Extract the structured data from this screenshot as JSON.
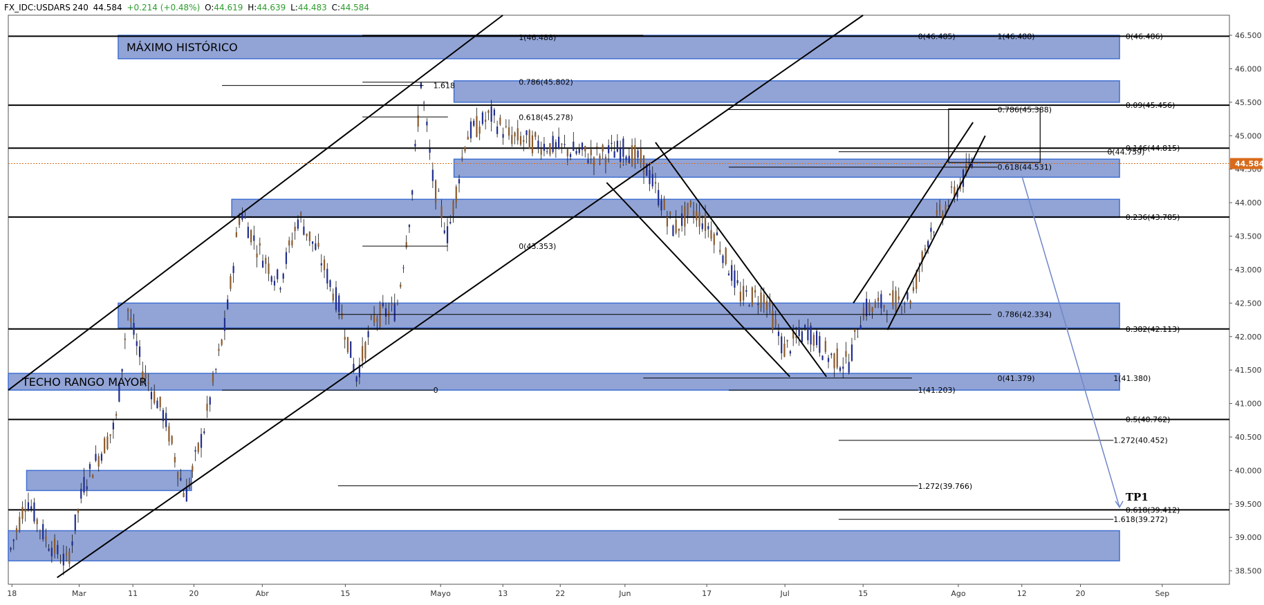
{
  "header": {
    "symbol": "FX_IDC:USDARS",
    "interval": "240",
    "last": "44.584",
    "change": "+0.214 (+0.48%)",
    "o_label": "O:",
    "o": "44.619",
    "h_label": "H:",
    "h": "44.639",
    "l_label": "L:",
    "l": "44.483",
    "c_label": "C:",
    "c": "44.584"
  },
  "colors": {
    "zone_fill": "#7f94cf",
    "zone_border": "#3f6fd1",
    "bull": "#1f2d8f",
    "bear": "#8b5a2b",
    "price_tag": "#d86b1b",
    "projection": "#6f86c9"
  },
  "chart_data": {
    "type": "candlestick",
    "title": "",
    "xlabel": "",
    "ylabel": "",
    "ylim": [
      38.3,
      46.8
    ],
    "xlim": [
      0,
      1000
    ],
    "x_ticks": [
      {
        "label": "18",
        "x": 3
      },
      {
        "label": "Mar",
        "x": 58
      },
      {
        "label": "11",
        "x": 102
      },
      {
        "label": "20",
        "x": 152
      },
      {
        "label": "Abr",
        "x": 208
      },
      {
        "label": "15",
        "x": 276
      },
      {
        "label": "Mayo",
        "x": 354
      },
      {
        "label": "13",
        "x": 405
      },
      {
        "label": "22",
        "x": 452
      },
      {
        "label": "Jun",
        "x": 505
      },
      {
        "label": "17",
        "x": 572
      },
      {
        "label": "Jul",
        "x": 636
      },
      {
        "label": "15",
        "x": 700
      },
      {
        "label": "Ago",
        "x": 778
      },
      {
        "label": "12",
        "x": 830
      },
      {
        "label": "20",
        "x": 878
      },
      {
        "label": "Sep",
        "x": 945
      }
    ],
    "y_ticks": [
      "38.500",
      "39.000",
      "39.500",
      "40.000",
      "40.500",
      "41.000",
      "41.500",
      "42.000",
      "42.500",
      "43.000",
      "43.500",
      "44.000",
      "44.500",
      "45.000",
      "45.500",
      "46.000",
      "46.500"
    ],
    "last_price": 44.584,
    "last_price_label": "44.584",
    "horizontal_lines": [
      46.486,
      45.456,
      44.815,
      43.785,
      42.113,
      40.762,
      39.412
    ],
    "zones": [
      {
        "x0": 90,
        "x1": 910,
        "y0": 46.15,
        "y1": 46.5,
        "label": "MÁXIMO HISTÓRICO"
      },
      {
        "x0": 365,
        "x1": 910,
        "y0": 45.5,
        "y1": 45.82,
        "label": ""
      },
      {
        "x0": 365,
        "x1": 910,
        "y0": 44.38,
        "y1": 44.65,
        "label": ""
      },
      {
        "x0": 183,
        "x1": 910,
        "y0": 43.78,
        "y1": 44.05,
        "label": ""
      },
      {
        "x0": 90,
        "x1": 910,
        "y0": 42.13,
        "y1": 42.5,
        "label": ""
      },
      {
        "x0": 0,
        "x1": 910,
        "y0": 41.2,
        "y1": 41.45,
        "label": "TECHO RANGO MAYOR"
      },
      {
        "x0": 15,
        "x1": 150,
        "y0": 39.7,
        "y1": 40.0,
        "label": ""
      },
      {
        "x0": 0,
        "x1": 910,
        "y0": 38.65,
        "y1": 39.1,
        "label": ""
      }
    ],
    "fib_labels": [
      {
        "text": "0(46.486)",
        "x": 915,
        "y": 46.486
      },
      {
        "text": "1(46.488)",
        "x": 810,
        "y": 46.486
      },
      {
        "text": "0(46.485)",
        "x": 745,
        "y": 46.486
      },
      {
        "text": "1(46.488)",
        "x": 418,
        "y": 46.47
      },
      {
        "text": "0.786(45.802)",
        "x": 418,
        "y": 45.802
      },
      {
        "text": "1.618",
        "x": 348,
        "y": 45.75
      },
      {
        "text": "0.09(45.456)",
        "x": 915,
        "y": 45.456
      },
      {
        "text": "0.786(45.388)",
        "x": 810,
        "y": 45.388
      },
      {
        "text": "0.618(45.278)",
        "x": 418,
        "y": 45.278
      },
      {
        "text": "0.146(44.815)",
        "x": 915,
        "y": 44.815
      },
      {
        "text": "0(44.759)",
        "x": 900,
        "y": 44.759
      },
      {
        "text": "0.618(44.531)",
        "x": 810,
        "y": 44.531
      },
      {
        "text": "0.236(43.785)",
        "x": 915,
        "y": 43.785
      },
      {
        "text": "0(43.353)",
        "x": 418,
        "y": 43.353
      },
      {
        "text": "0.786(42.334)",
        "x": 810,
        "y": 42.334
      },
      {
        "text": "0.382(42.113)",
        "x": 915,
        "y": 42.113
      },
      {
        "text": "0(41.379)",
        "x": 810,
        "y": 41.379
      },
      {
        "text": "1(41.380)",
        "x": 905,
        "y": 41.38
      },
      {
        "text": "0",
        "x": 348,
        "y": 41.203
      },
      {
        "text": "1(41.203)",
        "x": 745,
        "y": 41.203
      },
      {
        "text": "0.5(40.762)",
        "x": 915,
        "y": 40.762
      },
      {
        "text": "1.272(40.452)",
        "x": 905,
        "y": 40.452
      },
      {
        "text": "1.272(39.766)",
        "x": 745,
        "y": 39.766
      },
      {
        "text": "0.618(39.412)",
        "x": 915,
        "y": 39.412
      },
      {
        "text": "1.618(39.272)",
        "x": 905,
        "y": 39.272
      }
    ],
    "target_label": "TP1"
  }
}
